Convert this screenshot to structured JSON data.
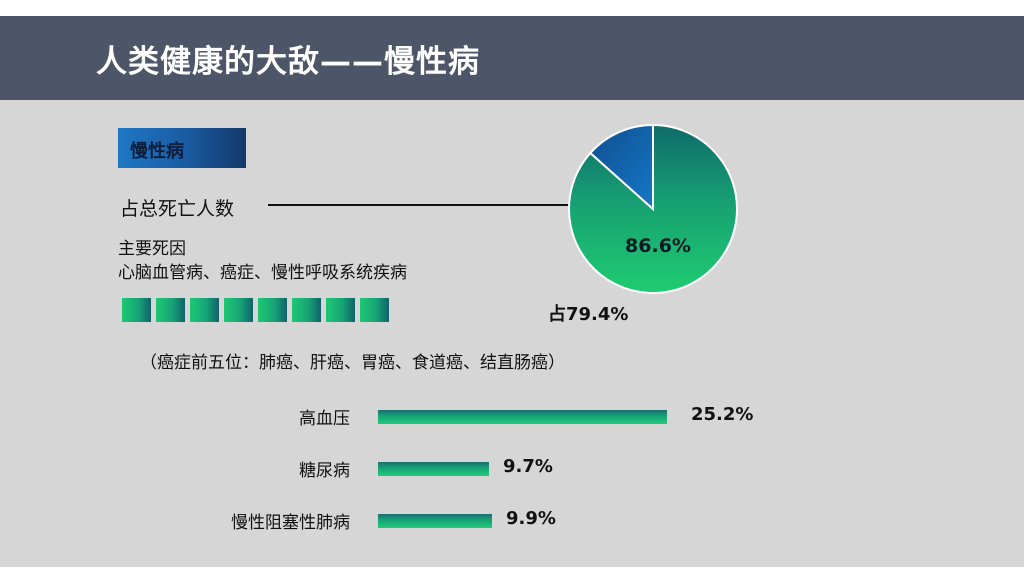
{
  "header": {
    "title": "人类健康的大敌——慢性病"
  },
  "section_tag": "慢性病",
  "text": {
    "death_share_label": "占总死亡人数",
    "main_cause_label": "主要死因",
    "main_diseases": "心脑血管病、癌症、慢性呼吸系统疾病",
    "diseases_share": "占79.4%",
    "cancer_top5": "（癌症前五位：肺癌、肝癌、胃癌、食道癌、结直肠癌）"
  },
  "chart_data": [
    {
      "type": "pie",
      "values": [
        86.6,
        13.4
      ],
      "labels": [
        "86.6%",
        ""
      ],
      "colors": [
        "#1ec06f",
        "#1163a8"
      ]
    },
    {
      "type": "bar",
      "orientation": "horizontal",
      "categories": [
        "高血压",
        "糖尿病",
        "慢性阻塞性肺病"
      ],
      "values": [
        25.2,
        9.7,
        9.9
      ],
      "value_labels": [
        "25.2%",
        "9.7%",
        "9.9%"
      ]
    }
  ],
  "progress_squares": {
    "count": 8,
    "colors": [
      "#1dc872",
      "#10626a"
    ]
  }
}
